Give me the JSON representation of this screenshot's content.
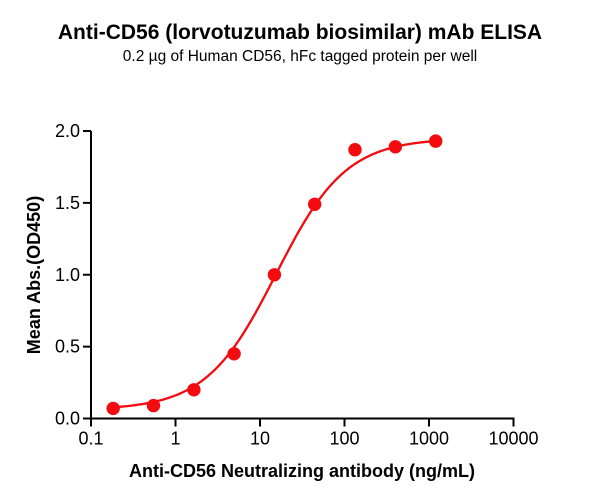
{
  "header": {
    "title": "Anti-CD56 (lorvotuzumab biosimilar) mAb ELISA",
    "subtitle": "0.2 µg of Human CD56, hFc tagged protein per well"
  },
  "chart_data": {
    "type": "scatter",
    "title": "Anti-CD56 (lorvotuzumab biosimilar) mAb ELISA",
    "subtitle": "0.2 µg of Human CD56, hFc tagged protein per well",
    "xlabel": "Anti-CD56 Neutralizing antibody (ng/mL)",
    "ylabel": "Mean Abs.(OD450)",
    "x_scale": "log10",
    "xlim": [
      0.1,
      10000
    ],
    "ylim": [
      0.0,
      2.0
    ],
    "x_ticks": [
      0.1,
      1,
      10,
      100,
      1000,
      10000
    ],
    "x_tick_labels": [
      "0.1",
      "1",
      "10",
      "100",
      "1000",
      "10000"
    ],
    "y_ticks": [
      0.0,
      0.5,
      1.0,
      1.5,
      2.0
    ],
    "y_tick_labels": [
      "0.0",
      "0.5",
      "1.0",
      "1.5",
      "2.0"
    ],
    "grid": false,
    "legend": "none",
    "series": [
      {
        "name": "Anti-CD56 neutralizing antibody",
        "marker": "circle",
        "color": "#f30b10",
        "x": [
          0.183,
          0.549,
          1.65,
          4.94,
          14.8,
          44.4,
          133.3,
          400,
          1200
        ],
        "y": [
          0.07,
          0.09,
          0.2,
          0.45,
          1.0,
          1.49,
          1.87,
          1.89,
          1.93
        ]
      }
    ],
    "fit_curve": {
      "model": "4PL",
      "bottom": 0.06,
      "top": 1.95,
      "ec50_ng_ml": 15.5,
      "hill": 1.05,
      "color": "#f30b10"
    },
    "axis_color": "#000000",
    "background_color": "#ffffff"
  }
}
